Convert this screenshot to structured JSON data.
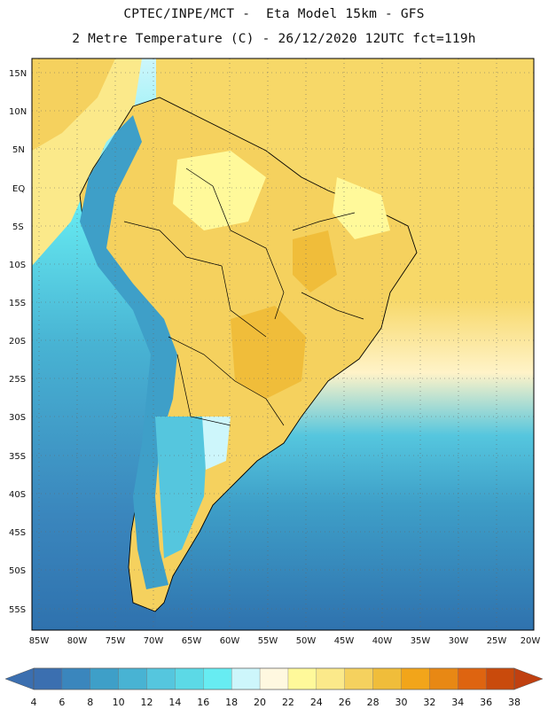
{
  "header": {
    "title_line1": "CPTEC/INPE/MCT -  Eta Model 15km - GFS",
    "title_line2": "2 Metre Temperature (C) - 26/12/2020 12UTC fct=119h"
  },
  "map": {
    "lat_labels": [
      "15N",
      "10N",
      "5N",
      "EQ",
      "5S",
      "10S",
      "15S",
      "20S",
      "25S",
      "30S",
      "35S",
      "40S",
      "45S",
      "50S",
      "55S"
    ],
    "lon_labels": [
      "85W",
      "80W",
      "75W",
      "70W",
      "65W",
      "60W",
      "55W",
      "50W",
      "45W",
      "40W",
      "35W",
      "30W",
      "25W",
      "20W"
    ],
    "land_outline_color": "#000000",
    "ocean_warm_color": "#f7d868",
    "ocean_cool_color": "#44b8d4",
    "ocean_cold_color": "#2f72ae"
  },
  "colorbar": {
    "ticks": [
      "4",
      "6",
      "8",
      "10",
      "12",
      "14",
      "16",
      "18",
      "20",
      "22",
      "24",
      "26",
      "28",
      "30",
      "32",
      "34",
      "36",
      "38"
    ],
    "low_end_color": "#3b6fb0",
    "high_end_color": "#c04010",
    "colors": [
      "#3b6fb0",
      "#3a86bd",
      "#3e9fc8",
      "#48b3d3",
      "#55c6de",
      "#5cd9e6",
      "#67ecf2",
      "#cdf6fb",
      "#fff8e0",
      "#fff99a",
      "#fbe98a",
      "#f5d15e",
      "#f0bd3a",
      "#f2a51a",
      "#e88814",
      "#de6410",
      "#c94a0c"
    ]
  }
}
